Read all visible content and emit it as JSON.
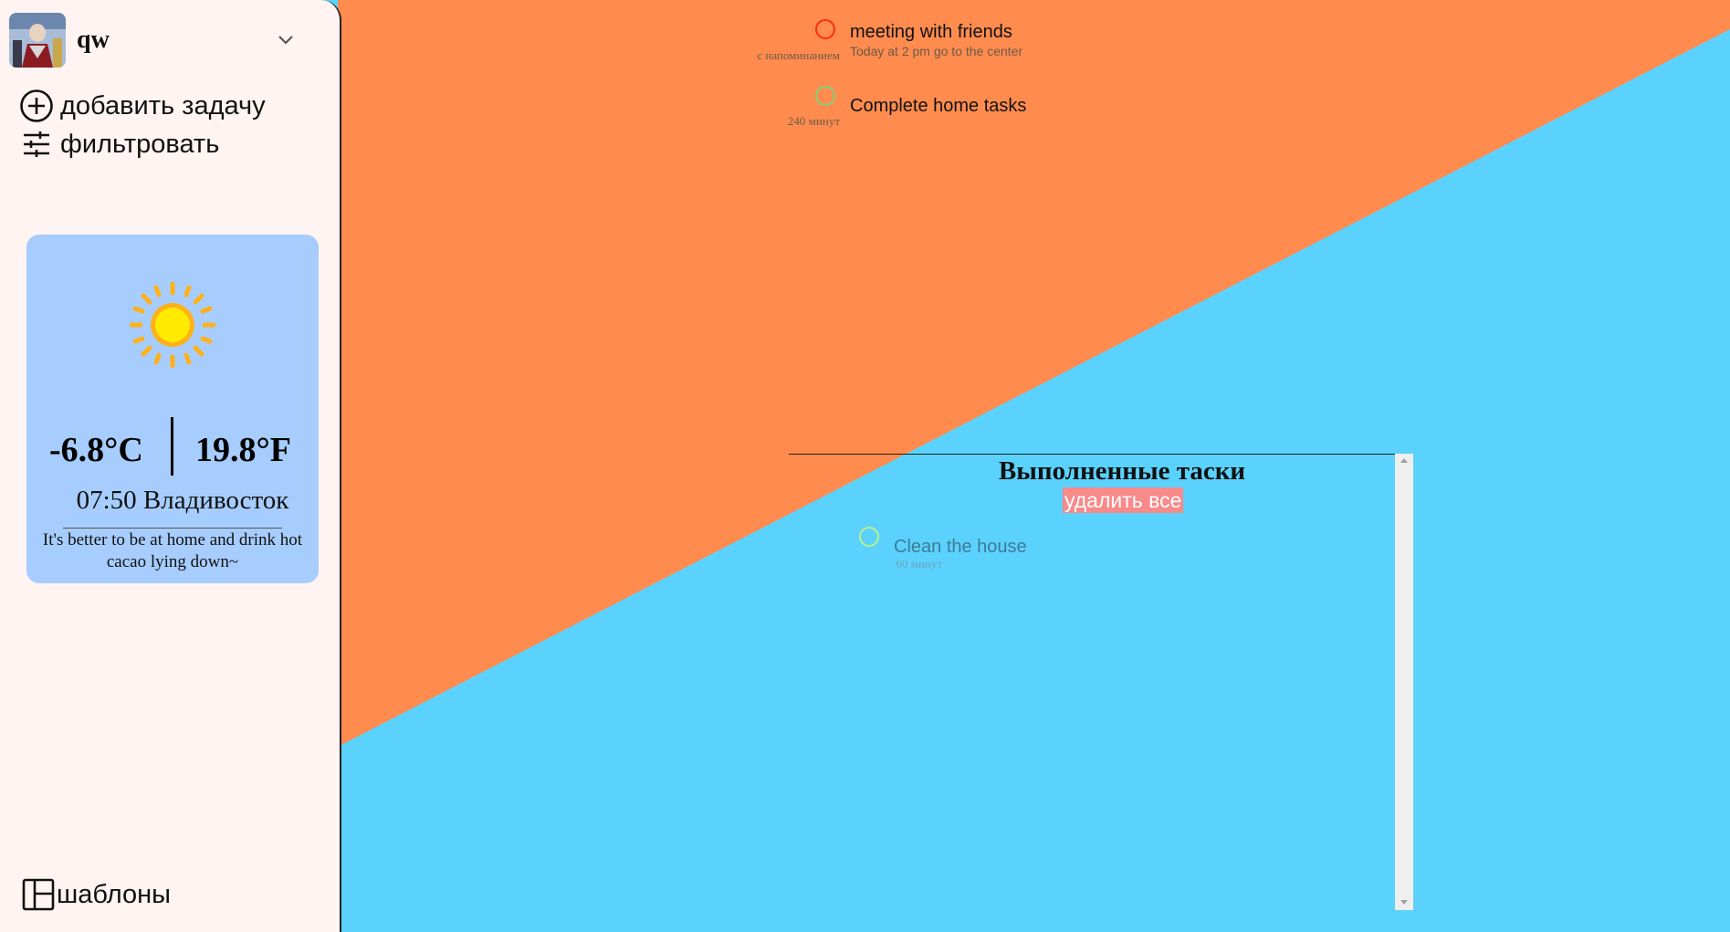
{
  "user": {
    "name": "qw"
  },
  "sidebar": {
    "add_task_label": "добавить задачу",
    "filter_label": "фильтровать",
    "templates_label": "шаблоны"
  },
  "weather": {
    "temp_c": "-6.8°C",
    "temp_f": "19.8°F",
    "time_location": "07:50 Владивосток",
    "advice": "It's better to be at home and drink hot cacao lying down~",
    "icon": "sun-icon"
  },
  "tasks": [
    {
      "title": "meeting with friends",
      "description": "Today at 2 pm go to the center",
      "meta": "с напоминанием",
      "circle_color": "#ff2a16"
    },
    {
      "title": "Complete home tasks",
      "description": "",
      "meta": "240 минут",
      "circle_color": "#7fd07a"
    }
  ],
  "completed": {
    "title": "Выполненные таски",
    "delete_all_label": "удалить все",
    "tasks": [
      {
        "title": "Clean the house",
        "meta": "60 минут",
        "circle_color": "#b8f08a"
      }
    ]
  },
  "colors": {
    "bg_orange": "#ff8c4e",
    "bg_blue": "#5bd2fd",
    "sidebar_bg": "#fff4f2",
    "weather_card": "#a6cdfd",
    "delete_button": "#f88a8a"
  }
}
